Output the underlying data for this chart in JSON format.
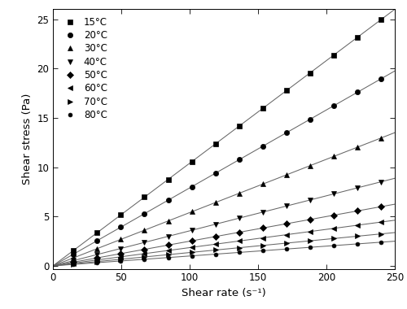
{
  "xlabel": "Shear rate (s⁻¹)",
  "ylabel": "Shear stress (Pa)",
  "xlim": [
    0,
    250
  ],
  "ylim": [
    -0.3,
    26
  ],
  "xticks": [
    0,
    50,
    100,
    150,
    200,
    250
  ],
  "yticks": [
    0,
    5,
    10,
    15,
    20,
    25
  ],
  "series": [
    {
      "label": "15°C",
      "slope": 0.104,
      "marker": "s",
      "markersize": 4.5
    },
    {
      "label": "20°C",
      "slope": 0.079,
      "marker": "o",
      "markersize": 4.5
    },
    {
      "label": "30°C",
      "slope": 0.054,
      "marker": "^",
      "markersize": 4.5
    },
    {
      "label": "40°C",
      "slope": 0.0355,
      "marker": "v",
      "markersize": 4.5
    },
    {
      "label": "50°C",
      "slope": 0.025,
      "marker": "D",
      "markersize": 4.0
    },
    {
      "label": "60°C",
      "slope": 0.0185,
      "marker": "<",
      "markersize": 4.5
    },
    {
      "label": "70°C",
      "slope": 0.0135,
      "marker": ">",
      "markersize": 4.5
    },
    {
      "label": "80°C",
      "slope": 0.01,
      "marker": "o",
      "markersize": 3.5
    }
  ],
  "data_color": "#000000",
  "line_color": "#666666",
  "background_color": "#ffffff",
  "tick_fontsize": 8.5,
  "label_fontsize": 9.5,
  "legend_fontsize": 8.5,
  "n_points": 14,
  "x_start": 15,
  "x_end": 240,
  "figwidth": 5.0,
  "figheight": 3.8,
  "dpi": 100
}
